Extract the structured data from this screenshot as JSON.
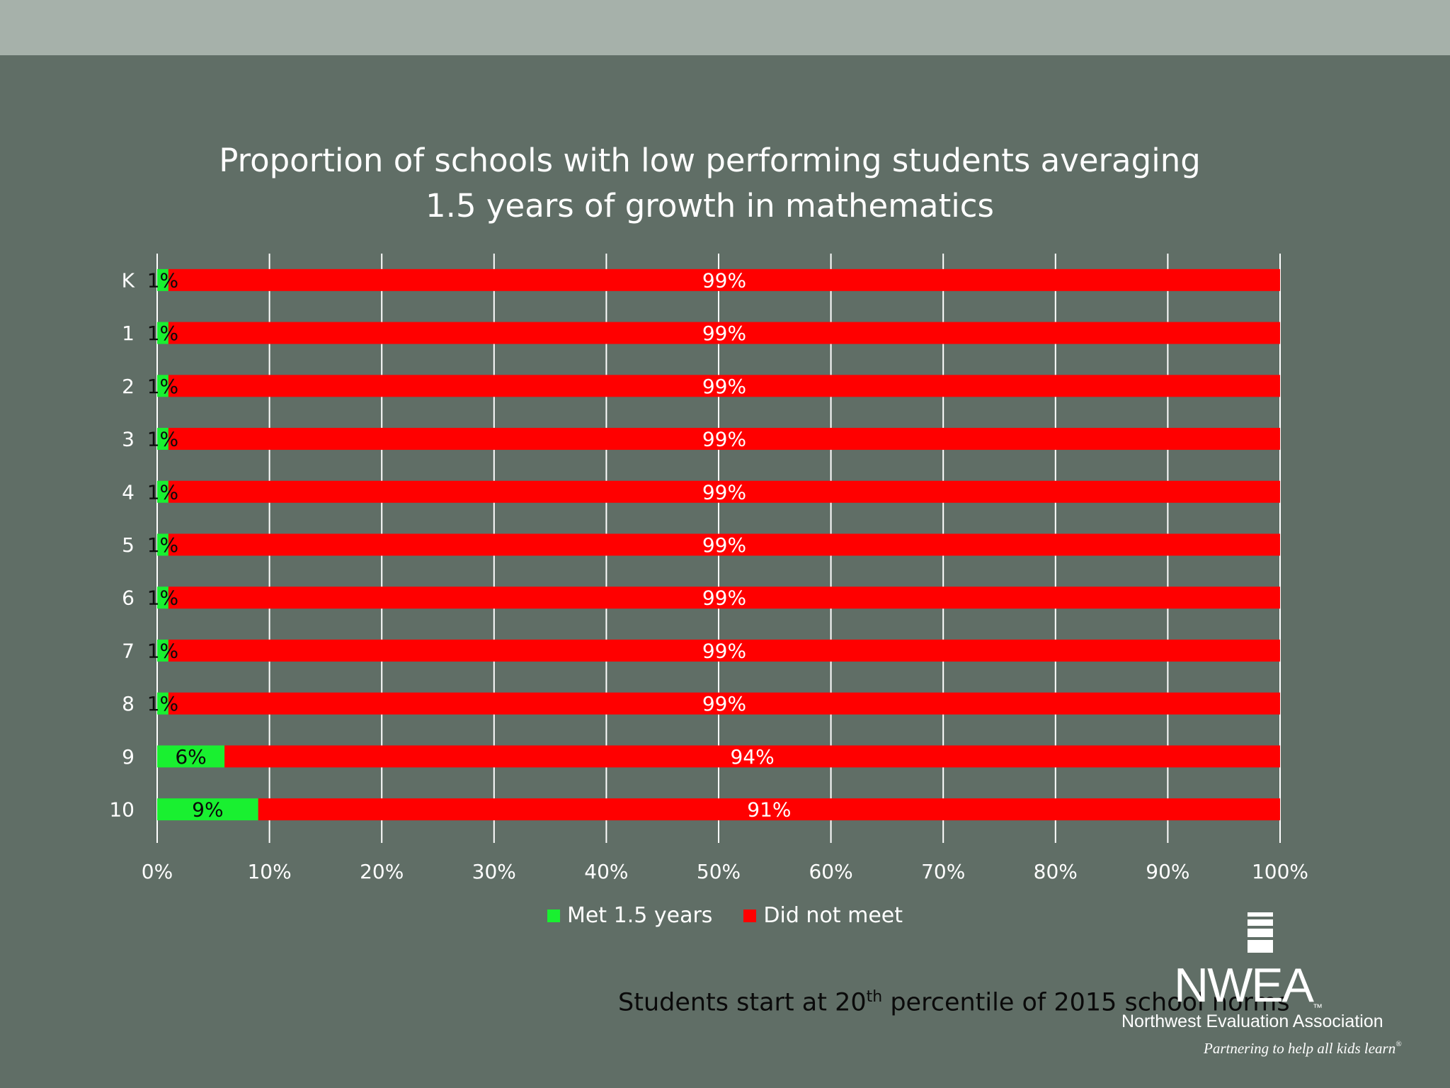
{
  "chart_data": {
    "type": "bar",
    "orientation": "horizontal",
    "stacked": true,
    "percent_stacked": true,
    "title_line1": "Proportion of schools with low performing students averaging",
    "title_line2": "1.5 years of growth in mathematics",
    "categories": [
      "K",
      "1",
      "2",
      "3",
      "4",
      "5",
      "6",
      "7",
      "8",
      "9",
      "10"
    ],
    "series": [
      {
        "name": "Met 1.5 years",
        "color": "#19f030",
        "label_color": "#0a0a0a",
        "values": [
          1,
          1,
          1,
          1,
          1,
          1,
          1,
          1,
          1,
          6,
          9
        ],
        "labels": [
          "1%",
          "1%",
          "1%",
          "1%",
          "1%",
          "1%",
          "1%",
          "1%",
          "1%",
          "6%",
          "9%"
        ]
      },
      {
        "name": "Did not meet",
        "color": "#ff0000",
        "label_color": "#ffffff",
        "values": [
          99,
          99,
          99,
          99,
          99,
          99,
          99,
          99,
          99,
          94,
          91
        ],
        "labels": [
          "99%",
          "99%",
          "99%",
          "99%",
          "99%",
          "99%",
          "99%",
          "99%",
          "99%",
          "94%",
          "91%"
        ]
      }
    ],
    "xlim": [
      0,
      100
    ],
    "x_ticks": [
      0,
      10,
      20,
      30,
      40,
      50,
      60,
      70,
      80,
      90,
      100
    ],
    "x_tick_labels": [
      "0%",
      "10%",
      "20%",
      "30%",
      "40%",
      "50%",
      "60%",
      "70%",
      "80%",
      "90%",
      "100%"
    ],
    "grid": true,
    "legend_position": "bottom"
  },
  "footnote": {
    "prefix": "Students start at 20",
    "superscript": "th",
    "suffix": " percentile of 2015 school norms"
  },
  "logo": {
    "name": "NWEA",
    "trademark": "™",
    "full_name": "Northwest Evaluation Association",
    "tagline": "Partnering to help all kids learn",
    "tagline_mark": "®"
  },
  "colors": {
    "background": "#606e66",
    "top_band": "#a6b1aa",
    "text": "#ffffff"
  }
}
